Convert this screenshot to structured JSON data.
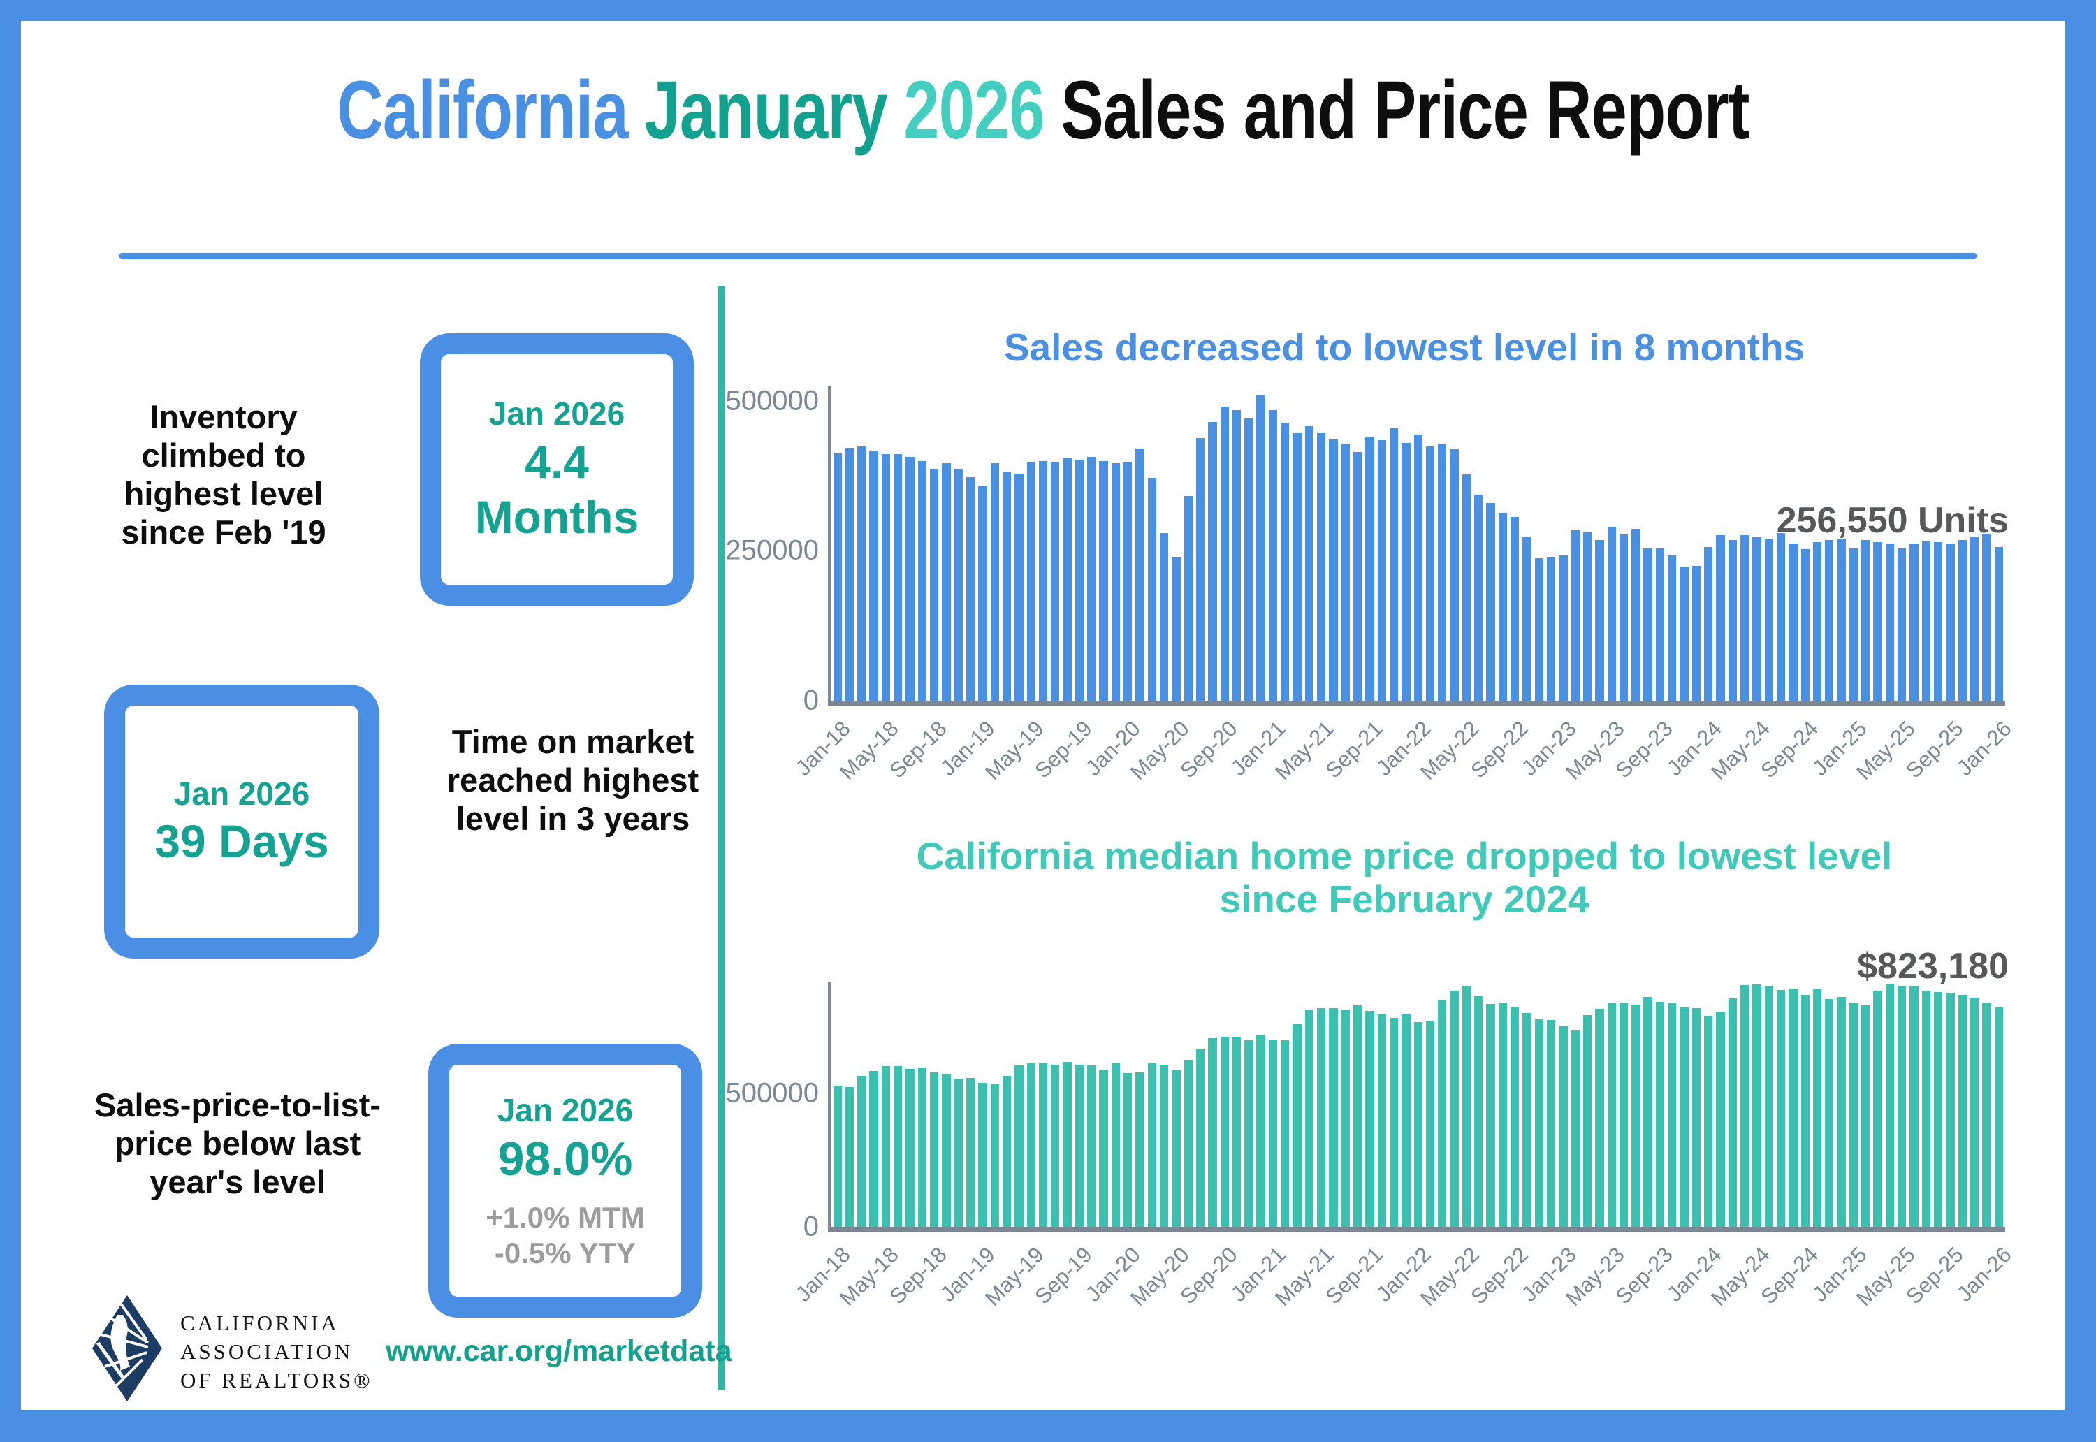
{
  "header": {
    "title_part1": "California",
    "title_part2": "January",
    "title_part3": "2026",
    "title_part4": "Sales and Price Report"
  },
  "colors": {
    "frame_blue": "#4a8fe4",
    "bar_blue": "#4a90e2",
    "bar_teal": "#3bbfae",
    "title_teal_dark": "#12a08f",
    "title_teal_light": "#43cec0",
    "stat_teal": "#14a392",
    "divider_teal": "#2eb7a6",
    "axis_gray": "#7b8794",
    "annotation_gray": "#56585a",
    "sub_stat_gray": "#9c9c9c",
    "logo_navy": "#1c3c63"
  },
  "stats": [
    {
      "label": "Inventory climbed to highest level since Feb '19",
      "box_period": "Jan 2026",
      "box_value": "4.4 Months"
    },
    {
      "label": "Time on market reached highest level in 3 years",
      "box_period": "Jan 2026",
      "box_value": "39 Days"
    },
    {
      "label": "Sales-price-to-list-price below last year's level",
      "box_period": "Jan 2026",
      "box_value": "98.0%",
      "box_sub1": "+1.0% MTM",
      "box_sub2": "-0.5% YTY"
    }
  ],
  "footer": {
    "logo_lines": [
      "CALIFORNIA",
      "ASSOCIATION",
      "OF REALTORS®"
    ],
    "url": "www.car.org/marketdata"
  },
  "chart_data": [
    {
      "type": "bar",
      "title": "Sales decreased to lowest level in 8 months",
      "annotation": "256,550 Units",
      "xlabel": "",
      "ylabel": "",
      "ylim": [
        0,
        524000
      ],
      "yticks": [
        500000,
        250000,
        0
      ],
      "xtick_step": 4,
      "grid": false,
      "legend": false,
      "bar_color": "#4a90e2",
      "categories": [
        "Jan-18",
        "Feb-18",
        "Mar-18",
        "Apr-18",
        "May-18",
        "Jun-18",
        "Jul-18",
        "Aug-18",
        "Sep-18",
        "Oct-18",
        "Nov-18",
        "Dec-18",
        "Jan-19",
        "Feb-19",
        "Mar-19",
        "Apr-19",
        "May-19",
        "Jun-19",
        "Jul-19",
        "Aug-19",
        "Sep-19",
        "Oct-19",
        "Nov-19",
        "Dec-19",
        "Jan-20",
        "Feb-20",
        "Mar-20",
        "Apr-20",
        "May-20",
        "Jun-20",
        "Jul-20",
        "Aug-20",
        "Sep-20",
        "Oct-20",
        "Nov-20",
        "Dec-20",
        "Jan-21",
        "Feb-21",
        "Mar-21",
        "Apr-21",
        "May-21",
        "Jun-21",
        "Jul-21",
        "Aug-21",
        "Sep-21",
        "Oct-21",
        "Nov-21",
        "Dec-21",
        "Jan-22",
        "Feb-22",
        "Mar-22",
        "Apr-22",
        "May-22",
        "Jun-22",
        "Jul-22",
        "Aug-22",
        "Sep-22",
        "Oct-22",
        "Nov-22",
        "Dec-22",
        "Jan-23",
        "Feb-23",
        "Mar-23",
        "Apr-23",
        "May-23",
        "Jun-23",
        "Jul-23",
        "Aug-23",
        "Sep-23",
        "Oct-23",
        "Nov-23",
        "Dec-23",
        "Jan-24",
        "Feb-24",
        "Mar-24",
        "Apr-24",
        "May-24",
        "Jun-24",
        "Jul-24",
        "Aug-24",
        "Sep-24",
        "Oct-24",
        "Nov-24",
        "Dec-24",
        "Jan-25",
        "Feb-25",
        "Mar-25",
        "Apr-25",
        "May-25",
        "Jun-25",
        "Jul-25",
        "Aug-25",
        "Sep-25",
        "Oct-25",
        "Nov-25",
        "Dec-25",
        "Jan-26"
      ],
      "values": [
        412000,
        421000,
        424000,
        417000,
        411000,
        411000,
        406000,
        400000,
        385000,
        396000,
        385000,
        373000,
        359000,
        396000,
        382000,
        379000,
        398000,
        400000,
        398000,
        404000,
        402000,
        406000,
        400000,
        396000,
        398000,
        420000,
        372000,
        280000,
        240000,
        341000,
        438000,
        465000,
        490000,
        485000,
        470000,
        509000,
        485000,
        463000,
        446000,
        458000,
        446000,
        436000,
        429000,
        415000,
        439000,
        434000,
        454000,
        430000,
        444000,
        424000,
        427000,
        419000,
        377000,
        344000,
        330000,
        313000,
        306000,
        274000,
        238000,
        240000,
        242000,
        284000,
        281000,
        268000,
        290000,
        277000,
        286000,
        254000,
        254000,
        242000,
        224000,
        225000,
        256000,
        276000,
        268000,
        276000,
        272000,
        270000,
        280000,
        262000,
        253000,
        264000,
        268000,
        269000,
        254000,
        268000,
        264000,
        262000,
        254000,
        262000,
        266000,
        264000,
        262000,
        268000,
        274000,
        278000,
        256550
      ]
    },
    {
      "type": "bar",
      "title": "California median home price dropped to lowest level since February 2024",
      "annotation": "$823,180",
      "xlabel": "",
      "ylabel": "",
      "ylim": [
        0,
        918000
      ],
      "yticks": [
        500000,
        0
      ],
      "xtick_step": 4,
      "grid": false,
      "legend": false,
      "bar_color": "#3bbfae",
      "categories": [
        "Jan-18",
        "Feb-18",
        "Mar-18",
        "Apr-18",
        "May-18",
        "Jun-18",
        "Jul-18",
        "Aug-18",
        "Sep-18",
        "Oct-18",
        "Nov-18",
        "Dec-18",
        "Jan-19",
        "Feb-19",
        "Mar-19",
        "Apr-19",
        "May-19",
        "Jun-19",
        "Jul-19",
        "Aug-19",
        "Sep-19",
        "Oct-19",
        "Nov-19",
        "Dec-19",
        "Jan-20",
        "Feb-20",
        "Mar-20",
        "Apr-20",
        "May-20",
        "Jun-20",
        "Jul-20",
        "Aug-20",
        "Sep-20",
        "Oct-20",
        "Nov-20",
        "Dec-20",
        "Jan-21",
        "Feb-21",
        "Mar-21",
        "Apr-21",
        "May-21",
        "Jun-21",
        "Jul-21",
        "Aug-21",
        "Sep-21",
        "Oct-21",
        "Nov-21",
        "Dec-21",
        "Jan-22",
        "Feb-22",
        "Mar-22",
        "Apr-22",
        "May-22",
        "Jun-22",
        "Jul-22",
        "Aug-22",
        "Sep-22",
        "Oct-22",
        "Nov-22",
        "Dec-22",
        "Jan-23",
        "Feb-23",
        "Mar-23",
        "Apr-23",
        "May-23",
        "Jun-23",
        "Jul-23",
        "Aug-23",
        "Sep-23",
        "Oct-23",
        "Nov-23",
        "Dec-23",
        "Jan-24",
        "Feb-24",
        "Mar-24",
        "Apr-24",
        "May-24",
        "Jun-24",
        "Jul-24",
        "Aug-24",
        "Sep-24",
        "Oct-24",
        "Nov-24",
        "Dec-24",
        "Jan-25",
        "Feb-25",
        "Mar-25",
        "Apr-25",
        "May-25",
        "Jun-25",
        "Jul-25",
        "Aug-25",
        "Sep-25",
        "Oct-25",
        "Nov-25",
        "Dec-25",
        "Jan-26"
      ],
      "values": [
        527800,
        522400,
        564800,
        584500,
        600900,
        602800,
        591500,
        596400,
        578900,
        572000,
        554800,
        557600,
        538700,
        534100,
        565900,
        602900,
        611200,
        611400,
        607900,
        617400,
        605700,
        605300,
        589800,
        615100,
        575200,
        578300,
        612400,
        606400,
        588100,
        626200,
        666300,
        706900,
        712400,
        711300,
        699000,
        717900,
        699900,
        699000,
        758900,
        813900,
        818300,
        819600,
        811200,
        827900,
        808900,
        798400,
        782500,
        796600,
        765600,
        771300,
        849100,
        884900,
        898980,
        863800,
        833900,
        839500,
        821700,
        801200,
        777500,
        774600,
        751300,
        735500,
        791500,
        815300,
        836100,
        838300,
        832300,
        859800,
        843300,
        840300,
        822200,
        819700,
        788900,
        806500,
        854500,
        904200,
        908000,
        900700,
        886600,
        888700,
        868200,
        888700,
        852900,
        861000,
        838900,
        829100,
        884400,
        910100,
        900200,
        899600,
        884100,
        880000,
        875000,
        868000,
        858000,
        840000,
        823180
      ]
    }
  ]
}
